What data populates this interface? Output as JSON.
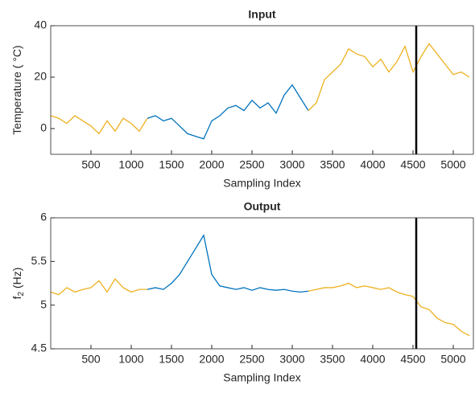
{
  "chart_data": [
    {
      "type": "line",
      "title": "Input",
      "xlabel": "Sampling Index",
      "ylabel": "Temperature ( °C)",
      "x": [
        0,
        100,
        200,
        300,
        400,
        500,
        600,
        700,
        800,
        900,
        1000,
        1100,
        1200,
        1300,
        1400,
        1500,
        1600,
        1700,
        1800,
        1900,
        2000,
        2100,
        2200,
        2300,
        2400,
        2500,
        2600,
        2700,
        2800,
        2900,
        3000,
        3100,
        3200,
        3300,
        3400,
        3500,
        3600,
        3700,
        3800,
        3900,
        4000,
        4100,
        4200,
        4300,
        4400,
        4500,
        4600,
        4700,
        4800,
        4900,
        5000,
        5100,
        5200
      ],
      "series": [
        {
          "color": "#edb120",
          "values": [
            5,
            4,
            2,
            5,
            3,
            1,
            -2,
            3,
            -1,
            4,
            2,
            -1,
            4,
            null,
            null,
            null,
            null,
            null,
            null,
            null,
            null,
            null,
            null,
            null,
            null,
            null,
            null,
            null,
            null,
            null,
            null,
            null,
            null,
            null,
            null,
            null,
            null,
            null,
            null,
            null,
            null,
            null,
            null,
            null,
            null,
            null,
            null,
            null,
            null,
            null,
            null,
            null,
            null
          ]
        },
        {
          "color": "#0072bd",
          "values": [
            null,
            null,
            null,
            null,
            null,
            null,
            null,
            null,
            null,
            null,
            null,
            null,
            4,
            5,
            3,
            4,
            1,
            -2,
            -3,
            -4,
            3,
            5,
            8,
            9,
            7,
            11,
            8,
            10,
            6,
            13,
            17,
            12,
            7,
            null,
            null,
            null,
            null,
            null,
            null,
            null,
            null,
            null,
            null,
            null,
            null,
            null,
            null,
            null,
            null,
            null,
            null,
            null,
            null
          ]
        },
        {
          "color": "#edb120",
          "values": [
            null,
            null,
            null,
            null,
            null,
            null,
            null,
            null,
            null,
            null,
            null,
            null,
            null,
            null,
            null,
            null,
            null,
            null,
            null,
            null,
            null,
            null,
            null,
            null,
            null,
            null,
            null,
            null,
            null,
            null,
            null,
            null,
            7,
            10,
            19,
            22,
            25,
            31,
            29,
            28,
            24,
            27,
            22,
            26,
            32,
            22,
            28,
            33,
            29,
            25,
            21,
            22,
            20
          ]
        }
      ],
      "xlim": [
        0,
        5250
      ],
      "xticks": [
        500,
        1000,
        1500,
        2000,
        2500,
        3000,
        3500,
        4000,
        4500,
        5000
      ],
      "ylim": [
        -10,
        40
      ],
      "yticks": [
        0,
        20,
        40
      ],
      "vline_x": 4540,
      "vline_color": "#000000"
    },
    {
      "type": "line",
      "title": "Output",
      "xlabel": "Sampling Index",
      "ylabel": "f",
      "ylabel_sub": "2",
      "ylabel_rest": " (Hz)",
      "x": [
        0,
        100,
        200,
        300,
        400,
        500,
        600,
        700,
        800,
        900,
        1000,
        1100,
        1200,
        1300,
        1400,
        1500,
        1600,
        1700,
        1800,
        1900,
        2000,
        2100,
        2200,
        2300,
        2400,
        2500,
        2600,
        2700,
        2800,
        2900,
        3000,
        3100,
        3200,
        3300,
        3400,
        3500,
        3600,
        3700,
        3800,
        3900,
        4000,
        4100,
        4200,
        4300,
        4400,
        4500,
        4600,
        4700,
        4800,
        4900,
        5000,
        5100,
        5200
      ],
      "series": [
        {
          "color": "#edb120",
          "values": [
            5.15,
            5.12,
            5.2,
            5.15,
            5.18,
            5.2,
            5.28,
            5.15,
            5.3,
            5.2,
            5.15,
            5.18,
            5.18,
            null,
            null,
            null,
            null,
            null,
            null,
            null,
            null,
            null,
            null,
            null,
            null,
            null,
            null,
            null,
            null,
            null,
            null,
            null,
            null,
            null,
            null,
            null,
            null,
            null,
            null,
            null,
            null,
            null,
            null,
            null,
            null,
            null,
            null,
            null,
            null,
            null,
            null,
            null,
            null
          ]
        },
        {
          "color": "#0072bd",
          "values": [
            null,
            null,
            null,
            null,
            null,
            null,
            null,
            null,
            null,
            null,
            null,
            null,
            5.18,
            5.2,
            5.18,
            5.25,
            5.35,
            5.5,
            5.65,
            5.8,
            5.35,
            5.22,
            5.2,
            5.18,
            5.2,
            5.17,
            5.2,
            5.18,
            5.17,
            5.18,
            5.16,
            5.15,
            5.16,
            null,
            null,
            null,
            null,
            null,
            null,
            null,
            null,
            null,
            null,
            null,
            null,
            null,
            null,
            null,
            null,
            null,
            null,
            null,
            null
          ]
        },
        {
          "color": "#edb120",
          "values": [
            null,
            null,
            null,
            null,
            null,
            null,
            null,
            null,
            null,
            null,
            null,
            null,
            null,
            null,
            null,
            null,
            null,
            null,
            null,
            null,
            null,
            null,
            null,
            null,
            null,
            null,
            null,
            null,
            null,
            null,
            null,
            null,
            5.16,
            5.18,
            5.2,
            5.2,
            5.22,
            5.25,
            5.2,
            5.22,
            5.2,
            5.18,
            5.2,
            5.15,
            5.12,
            5.1,
            4.98,
            4.95,
            4.85,
            4.8,
            4.78,
            4.7,
            4.65
          ]
        }
      ],
      "xlim": [
        0,
        5250
      ],
      "xticks": [
        500,
        1000,
        1500,
        2000,
        2500,
        3000,
        3500,
        4000,
        4500,
        5000
      ],
      "ylim": [
        4.5,
        6
      ],
      "yticks": [
        4.5,
        5,
        5.5,
        6
      ],
      "vline_x": 4540,
      "vline_color": "#000000"
    }
  ]
}
